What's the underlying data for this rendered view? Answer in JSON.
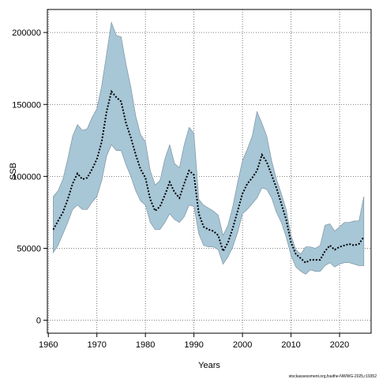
{
  "chart_data": {
    "type": "area",
    "xlabel": "Years",
    "ylabel": "SSB",
    "xlim": [
      1959.8,
      2026.5
    ],
    "ylim": [
      -9000,
      216000
    ],
    "xticks": [
      1960,
      1970,
      1980,
      1990,
      2000,
      2010,
      2020
    ],
    "yticks": [
      0,
      50000,
      100000,
      150000,
      200000
    ],
    "grid": true,
    "source_note": "stockassessment.org,fsaithe-NWWG-2025,r19352",
    "colors": {
      "band": "#a7c6d6",
      "band_edge": "#7e95a3",
      "line": "#000000",
      "grid": "#555555"
    },
    "x": [
      1961,
      1962,
      1963,
      1964,
      1965,
      1966,
      1967,
      1968,
      1969,
      1970,
      1971,
      1972,
      1973,
      1974,
      1975,
      1976,
      1977,
      1978,
      1979,
      1980,
      1981,
      1982,
      1983,
      1984,
      1985,
      1986,
      1987,
      1988,
      1989,
      1990,
      1991,
      1992,
      1993,
      1994,
      1995,
      1996,
      1997,
      1998,
      1999,
      2000,
      2001,
      2002,
      2003,
      2004,
      2005,
      2006,
      2007,
      2008,
      2009,
      2010,
      2011,
      2012,
      2013,
      2014,
      2015,
      2016,
      2017,
      2018,
      2019,
      2020,
      2021,
      2022,
      2023,
      2024,
      2025
    ],
    "series": [
      {
        "role": "upper",
        "values": [
          86000,
          90000,
          98000,
          112000,
          128000,
          136000,
          132000,
          133000,
          141000,
          147000,
          163000,
          185000,
          207000,
          198000,
          197000,
          178000,
          162000,
          142000,
          129000,
          124000,
          104000,
          94000,
          97000,
          112000,
          122000,
          109000,
          106000,
          122000,
          134000,
          130000,
          84000,
          80000,
          78000,
          76000,
          73000,
          59000,
          66000,
          79000,
          96000,
          111000,
          119000,
          128000,
          145000,
          137000,
          128000,
          111000,
          98000,
          88000,
          77000,
          59000,
          49000,
          46000,
          51000,
          51000,
          50000,
          52000,
          66000,
          67000,
          62000,
          65000,
          68000,
          68000,
          69000,
          69000,
          86000
        ]
      },
      {
        "role": "estimate",
        "values": [
          63000,
          69000,
          75000,
          84000,
          95000,
          102000,
          98000,
          99000,
          105000,
          112000,
          124000,
          145000,
          159000,
          155000,
          152000,
          137000,
          127000,
          115000,
          105000,
          99000,
          84000,
          76000,
          79000,
          87000,
          96000,
          89000,
          85000,
          95000,
          104000,
          101000,
          74000,
          65000,
          63000,
          62000,
          59000,
          48000,
          54000,
          64000,
          76000,
          88000,
          95000,
          99000,
          104000,
          115000,
          110000,
          101000,
          92000,
          81000,
          70000,
          54000,
          46000,
          43000,
          40000,
          42000,
          42000,
          42000,
          48000,
          52000,
          49000,
          51000,
          52000,
          53000,
          52000,
          53000,
          58000
        ]
      },
      {
        "role": "lower",
        "values": [
          47000,
          52000,
          60000,
          68000,
          77000,
          80000,
          77000,
          77000,
          82000,
          86000,
          97000,
          114000,
          122000,
          118000,
          118000,
          108000,
          100000,
          90000,
          83000,
          80000,
          68000,
          63000,
          63000,
          68000,
          74000,
          70000,
          68000,
          72000,
          80000,
          79000,
          60000,
          52000,
          51000,
          51000,
          49000,
          39000,
          44000,
          51000,
          61000,
          74000,
          77000,
          81000,
          85000,
          92000,
          91000,
          85000,
          75000,
          68000,
          58000,
          45000,
          37000,
          34000,
          32000,
          35000,
          34000,
          34000,
          38000,
          40000,
          37000,
          39000,
          40000,
          40000,
          39000,
          38000,
          38000
        ]
      }
    ]
  }
}
